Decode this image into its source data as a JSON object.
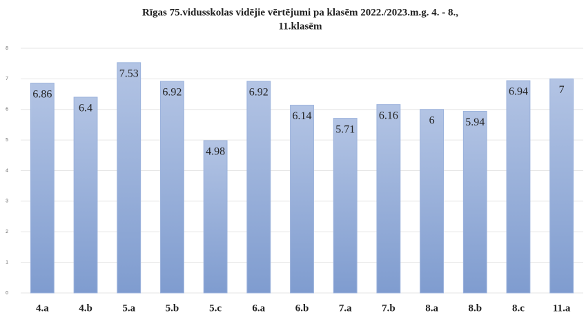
{
  "chart_data": {
    "type": "bar",
    "title": [
      "Rīgas 75.vidusskolas  vidējie vērtējumi pa klasēm 2022./2023.m.g. 4. - 8.,",
      "11.klasēm"
    ],
    "categories": [
      "4.a",
      "4.b",
      "5.a",
      "5.b",
      "5.c",
      "6.a",
      "6.b",
      "7.a",
      "7.b",
      "8.a",
      "8.b",
      "8.c",
      "11.a"
    ],
    "values": [
      6.86,
      6.4,
      7.53,
      6.92,
      4.98,
      6.92,
      6.14,
      5.71,
      6.16,
      6,
      5.94,
      6.94,
      7
    ],
    "color": "#9bb2dc",
    "ylim": [
      0,
      8
    ],
    "yticks": [
      0,
      1,
      2,
      3,
      4,
      5,
      6,
      7,
      8
    ],
    "grid": true
  }
}
